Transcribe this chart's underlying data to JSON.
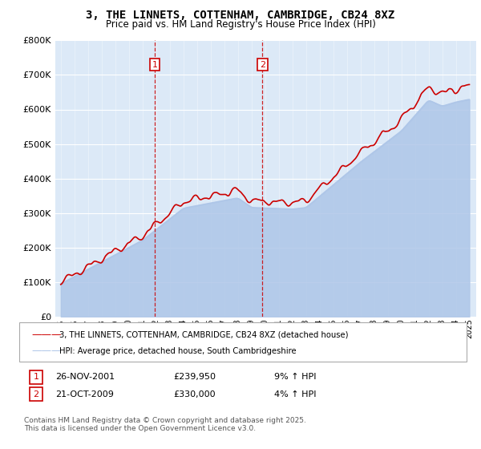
{
  "title": "3, THE LINNETS, COTTENHAM, CAMBRIDGE, CB24 8XZ",
  "subtitle": "Price paid vs. HM Land Registry's House Price Index (HPI)",
  "legend_line1": "3, THE LINNETS, COTTENHAM, CAMBRIDGE, CB24 8XZ (detached house)",
  "legend_line2": "HPI: Average price, detached house, South Cambridgeshire",
  "annotation1_date": "26-NOV-2001",
  "annotation1_price": "£239,950",
  "annotation1_hpi": "9% ↑ HPI",
  "annotation2_date": "21-OCT-2009",
  "annotation2_price": "£330,000",
  "annotation2_hpi": "4% ↑ HPI",
  "footnote": "Contains HM Land Registry data © Crown copyright and database right 2025.\nThis data is licensed under the Open Government Licence v3.0.",
  "hpi_color": "#aec6e8",
  "price_color": "#cc0000",
  "vline_color": "#cc0000",
  "background_color": "#dce9f7",
  "ylim": [
    0,
    800000
  ],
  "yticks": [
    0,
    100000,
    200000,
    300000,
    400000,
    500000,
    600000,
    700000,
    800000
  ],
  "marker1_x": 2001.9,
  "marker2_x": 2009.8
}
